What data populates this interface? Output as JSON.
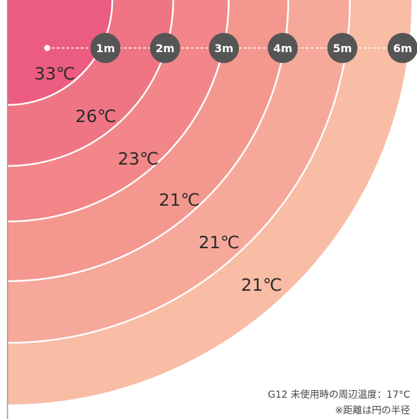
{
  "colors": {
    "rings": [
      "#f9bca4",
      "#f6a99a",
      "#f4988f",
      "#f28689",
      "#ef7585",
      "#ec5c80"
    ],
    "divider": "#ffffff",
    "badge": "#555555",
    "axis": "#999999"
  },
  "distances": [
    {
      "label": "1m"
    },
    {
      "label": "2m"
    },
    {
      "label": "3m"
    },
    {
      "label": "4m"
    },
    {
      "label": "5m"
    },
    {
      "label": "6m"
    }
  ],
  "temperatures": [
    "33℃",
    "26℃",
    "23℃",
    "21℃",
    "21℃",
    "21℃"
  ],
  "notes": {
    "ambient": "G12 未使用時の周辺温度：17°C",
    "radius": "※距離は円の半径"
  }
}
